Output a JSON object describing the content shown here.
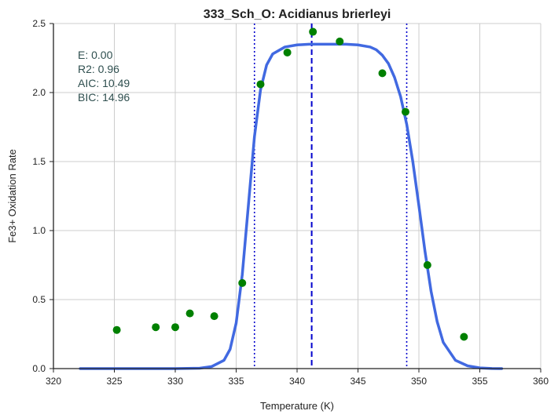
{
  "chart_data": {
    "type": "scatter",
    "title": "333_Sch_O: Acidianus brierleyi",
    "xlabel": "Temperature (K)",
    "ylabel": "Fe3+ Oxidation Rate",
    "xlim": [
      320,
      360
    ],
    "ylim": [
      0.0,
      2.5
    ],
    "xticks": [
      "320",
      "325",
      "330",
      "335",
      "340",
      "345",
      "350",
      "355",
      "360"
    ],
    "yticks": [
      "0.0",
      "0.5",
      "1.0",
      "1.5",
      "2.0",
      "2.5"
    ],
    "grid": true,
    "points": {
      "color": "#008000",
      "x": [
        325.2,
        328.4,
        330.0,
        331.2,
        333.2,
        335.5,
        337.0,
        339.2,
        341.3,
        343.5,
        347.0,
        348.9,
        350.7,
        353.7
      ],
      "y": [
        0.28,
        0.3,
        0.3,
        0.4,
        0.38,
        0.62,
        2.06,
        2.29,
        2.44,
        2.37,
        2.14,
        1.86,
        0.75,
        0.23
      ]
    },
    "fit_curve": {
      "color": "#4169e1",
      "x": [
        322.2,
        324.0,
        326.0,
        328.0,
        330.0,
        332.0,
        333.0,
        334.0,
        334.5,
        335.0,
        335.5,
        336.0,
        336.5,
        337.0,
        337.5,
        338.0,
        339.0,
        340.0,
        341.0,
        342.0,
        343.0,
        344.0,
        345.0,
        346.0,
        346.5,
        347.0,
        347.5,
        348.0,
        348.5,
        349.0,
        349.5,
        350.0,
        350.5,
        351.0,
        351.5,
        352.0,
        353.0,
        354.0,
        355.0,
        356.0,
        356.8
      ],
      "y": [
        0.0,
        0.0,
        0.0,
        0.0,
        0.0,
        0.003,
        0.015,
        0.06,
        0.14,
        0.33,
        0.68,
        1.18,
        1.68,
        2.02,
        2.2,
        2.28,
        2.33,
        2.345,
        2.35,
        2.35,
        2.35,
        2.35,
        2.345,
        2.33,
        2.31,
        2.27,
        2.21,
        2.11,
        1.97,
        1.77,
        1.5,
        1.18,
        0.85,
        0.56,
        0.34,
        0.19,
        0.06,
        0.02,
        0.005,
        0.001,
        0.0
      ]
    },
    "vlines": [
      {
        "x": 336.5,
        "style": "dotted",
        "color": "#0000cd"
      },
      {
        "x": 341.2,
        "style": "dashed",
        "color": "#0000cd"
      },
      {
        "x": 349.0,
        "style": "dotted",
        "color": "#0000cd"
      }
    ],
    "annotation": {
      "color": "#2f4f4f",
      "lines": [
        "E:  0.00",
        "R2:  0.96",
        "AIC: 10.49",
        "BIC: 14.96"
      ]
    }
  }
}
